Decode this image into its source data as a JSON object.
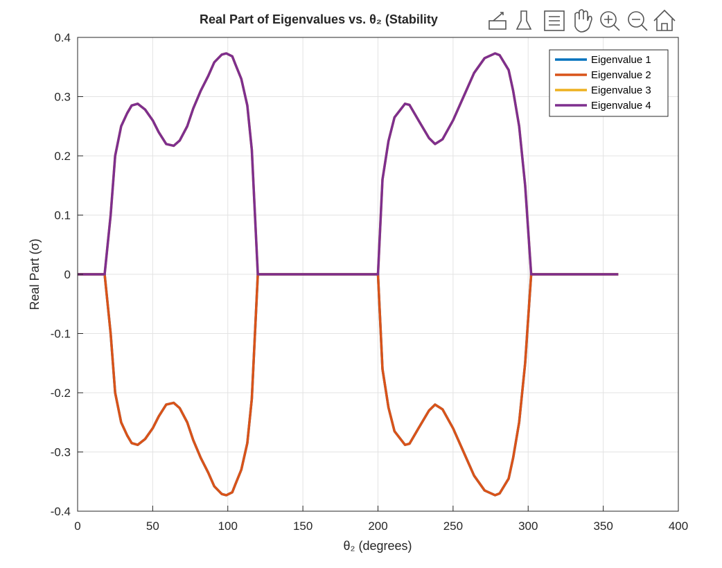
{
  "chart_data": {
    "type": "line",
    "title": "Real Part of Eigenvalues vs. θ₂ (Stability",
    "xlabel": "θ₂ (degrees)",
    "ylabel": "Real Part (σ)",
    "x": [
      0,
      18,
      22,
      25,
      29,
      33,
      36,
      40,
      45,
      50,
      54,
      59,
      64,
      68,
      73,
      77,
      82,
      87,
      91,
      96,
      99,
      103,
      105,
      109,
      113,
      116,
      120,
      200,
      203,
      207,
      211,
      218,
      221,
      227,
      234,
      238,
      243,
      250,
      257,
      264,
      271,
      278,
      281,
      287,
      290,
      294,
      298,
      302,
      360
    ],
    "series": [
      {
        "name": "Eigenvalue 1",
        "color": "#0072bd",
        "values": [
          0,
          0,
          -0.1,
          -0.2,
          -0.25,
          -0.272,
          -0.285,
          -0.288,
          -0.278,
          -0.26,
          -0.24,
          -0.22,
          -0.217,
          -0.226,
          -0.25,
          -0.28,
          -0.31,
          -0.335,
          -0.358,
          -0.371,
          -0.373,
          -0.368,
          -0.355,
          -0.33,
          -0.285,
          -0.21,
          0,
          0,
          -0.16,
          -0.225,
          -0.265,
          -0.288,
          -0.286,
          -0.26,
          -0.23,
          -0.22,
          -0.228,
          -0.26,
          -0.3,
          -0.34,
          -0.365,
          -0.373,
          -0.37,
          -0.345,
          -0.31,
          -0.25,
          -0.15,
          0,
          0
        ]
      },
      {
        "name": "Eigenvalue 2",
        "color": "#d95319",
        "values": [
          0,
          0,
          -0.1,
          -0.2,
          -0.25,
          -0.272,
          -0.285,
          -0.288,
          -0.278,
          -0.26,
          -0.24,
          -0.22,
          -0.217,
          -0.226,
          -0.25,
          -0.28,
          -0.31,
          -0.335,
          -0.358,
          -0.371,
          -0.373,
          -0.368,
          -0.355,
          -0.33,
          -0.285,
          -0.21,
          0,
          0,
          -0.16,
          -0.225,
          -0.265,
          -0.288,
          -0.286,
          -0.26,
          -0.23,
          -0.22,
          -0.228,
          -0.26,
          -0.3,
          -0.34,
          -0.365,
          -0.373,
          -0.37,
          -0.345,
          -0.31,
          -0.25,
          -0.15,
          0,
          0
        ]
      },
      {
        "name": "Eigenvalue 3",
        "color": "#edb120",
        "values": [
          0,
          0,
          0.1,
          0.2,
          0.25,
          0.272,
          0.285,
          0.288,
          0.278,
          0.26,
          0.24,
          0.22,
          0.217,
          0.226,
          0.25,
          0.28,
          0.31,
          0.335,
          0.358,
          0.371,
          0.373,
          0.368,
          0.355,
          0.33,
          0.285,
          0.21,
          0,
          0,
          0.16,
          0.225,
          0.265,
          0.288,
          0.286,
          0.26,
          0.23,
          0.22,
          0.228,
          0.26,
          0.3,
          0.34,
          0.365,
          0.373,
          0.37,
          0.345,
          0.31,
          0.25,
          0.15,
          0,
          0
        ]
      },
      {
        "name": "Eigenvalue 4",
        "color": "#7e2f8e",
        "values": [
          0,
          0,
          0.1,
          0.2,
          0.25,
          0.272,
          0.285,
          0.288,
          0.278,
          0.26,
          0.24,
          0.22,
          0.217,
          0.226,
          0.25,
          0.28,
          0.31,
          0.335,
          0.358,
          0.371,
          0.373,
          0.368,
          0.355,
          0.33,
          0.285,
          0.21,
          0,
          0,
          0.16,
          0.225,
          0.265,
          0.288,
          0.286,
          0.26,
          0.23,
          0.22,
          0.228,
          0.26,
          0.3,
          0.34,
          0.365,
          0.373,
          0.37,
          0.345,
          0.31,
          0.25,
          0.15,
          0,
          0
        ]
      }
    ],
    "xlim": [
      0,
      400
    ],
    "xticks": [
      0,
      50,
      100,
      150,
      200,
      250,
      300,
      350,
      400
    ],
    "ylim": [
      -0.4,
      0.4
    ],
    "yticks": [
      -0.4,
      -0.3,
      -0.2,
      -0.1,
      0,
      0.1,
      0.2,
      0.3,
      0.4
    ],
    "grid": true,
    "legend": "northeast"
  }
}
